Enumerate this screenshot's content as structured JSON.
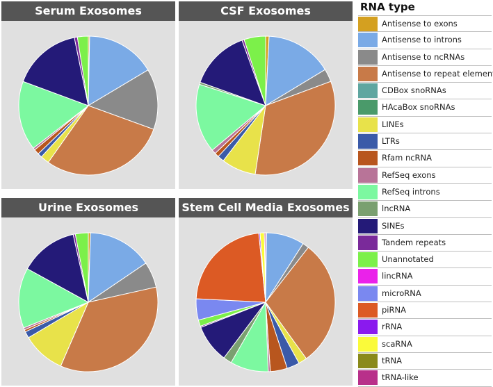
{
  "chart_data": {
    "type": "pie",
    "categories": [
      "Antisense to exons",
      "Antisense to introns",
      "Antisense to ncRNAs",
      "Antisense to repeat elements",
      "CDBox snoRNAs",
      "HAcaBox snoRNAs",
      "LINEs",
      "LTRs",
      "Rfam ncRNA",
      "RefSeq exons",
      "RefSeq introns",
      "lncRNA",
      "SINEs",
      "Tandem repeats",
      "Unannotated",
      "lincRNA",
      "microRNA",
      "piRNA",
      "rRNA",
      "scaRNA",
      "tRNA",
      "tRNA-like"
    ],
    "colors": [
      "#d4a020",
      "#7aaae6",
      "#8a8a8a",
      "#c87a48",
      "#5fa6a0",
      "#4a9a6a",
      "#e8e24a",
      "#3a5aa8",
      "#b8561e",
      "#b87498",
      "#7cf8a0",
      "#7aa070",
      "#241a78",
      "#7a2a9a",
      "#7cf04a",
      "#ea22ea",
      "#7a88f0",
      "#dc5a24",
      "#8a1aee",
      "#fafa3a",
      "#8a8a1a",
      "#b8308a"
    ],
    "legend_title": "RNA type",
    "legend_position": "right",
    "charts": [
      {
        "title": "Serum Exosomes",
        "values": [
          0.3,
          16,
          14,
          29,
          0,
          0,
          2,
          1,
          1.2,
          0.5,
          16,
          0,
          16,
          0.7,
          2.5,
          0,
          0,
          0,
          0,
          0,
          0,
          0
        ]
      },
      {
        "title": "CSF Exosomes",
        "values": [
          0.8,
          15.5,
          3,
          33,
          0,
          0,
          8,
          1.5,
          1,
          1,
          16,
          0.5,
          14,
          0.5,
          5,
          0,
          0,
          0,
          0,
          0,
          0,
          0
        ]
      },
      {
        "title": "Urine Exosomes",
        "values": [
          0.5,
          15,
          6,
          35,
          0,
          0,
          10,
          1.5,
          0.5,
          0.5,
          14,
          0,
          13.5,
          0.5,
          3,
          0,
          0,
          0,
          0,
          0,
          0,
          0
        ]
      },
      {
        "title": "Stem Cell Media Exosomes",
        "values": [
          0.2,
          9,
          1.5,
          30,
          0,
          0,
          2,
          3,
          4,
          0.5,
          9,
          2,
          9,
          0.3,
          1.5,
          0,
          5,
          23,
          0.3,
          1,
          0,
          0.3
        ]
      }
    ]
  }
}
